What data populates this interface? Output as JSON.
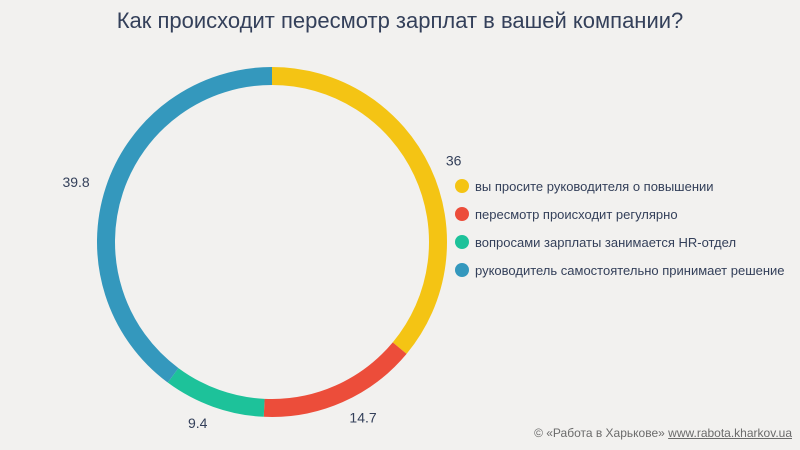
{
  "chart_data": {
    "type": "pie",
    "donut": true,
    "title": "Как происходит пересмотр зарплат в вашей компании?",
    "categories": [
      "вы просите руководителя о повышении",
      "пересмотр происходит регулярно",
      "вопросами зарплаты занимается HR-отдел",
      "руководитель самостоятельно принимает решение"
    ],
    "values": [
      36,
      14.7,
      9.4,
      39.8
    ],
    "colors": [
      "#f4c414",
      "#ec4d3a",
      "#1dc29a",
      "#3498bd"
    ],
    "legend": "right"
  },
  "footer": {
    "copyright": "© «Работа в Харькове»",
    "link": "www.rabota.kharkov.ua"
  }
}
